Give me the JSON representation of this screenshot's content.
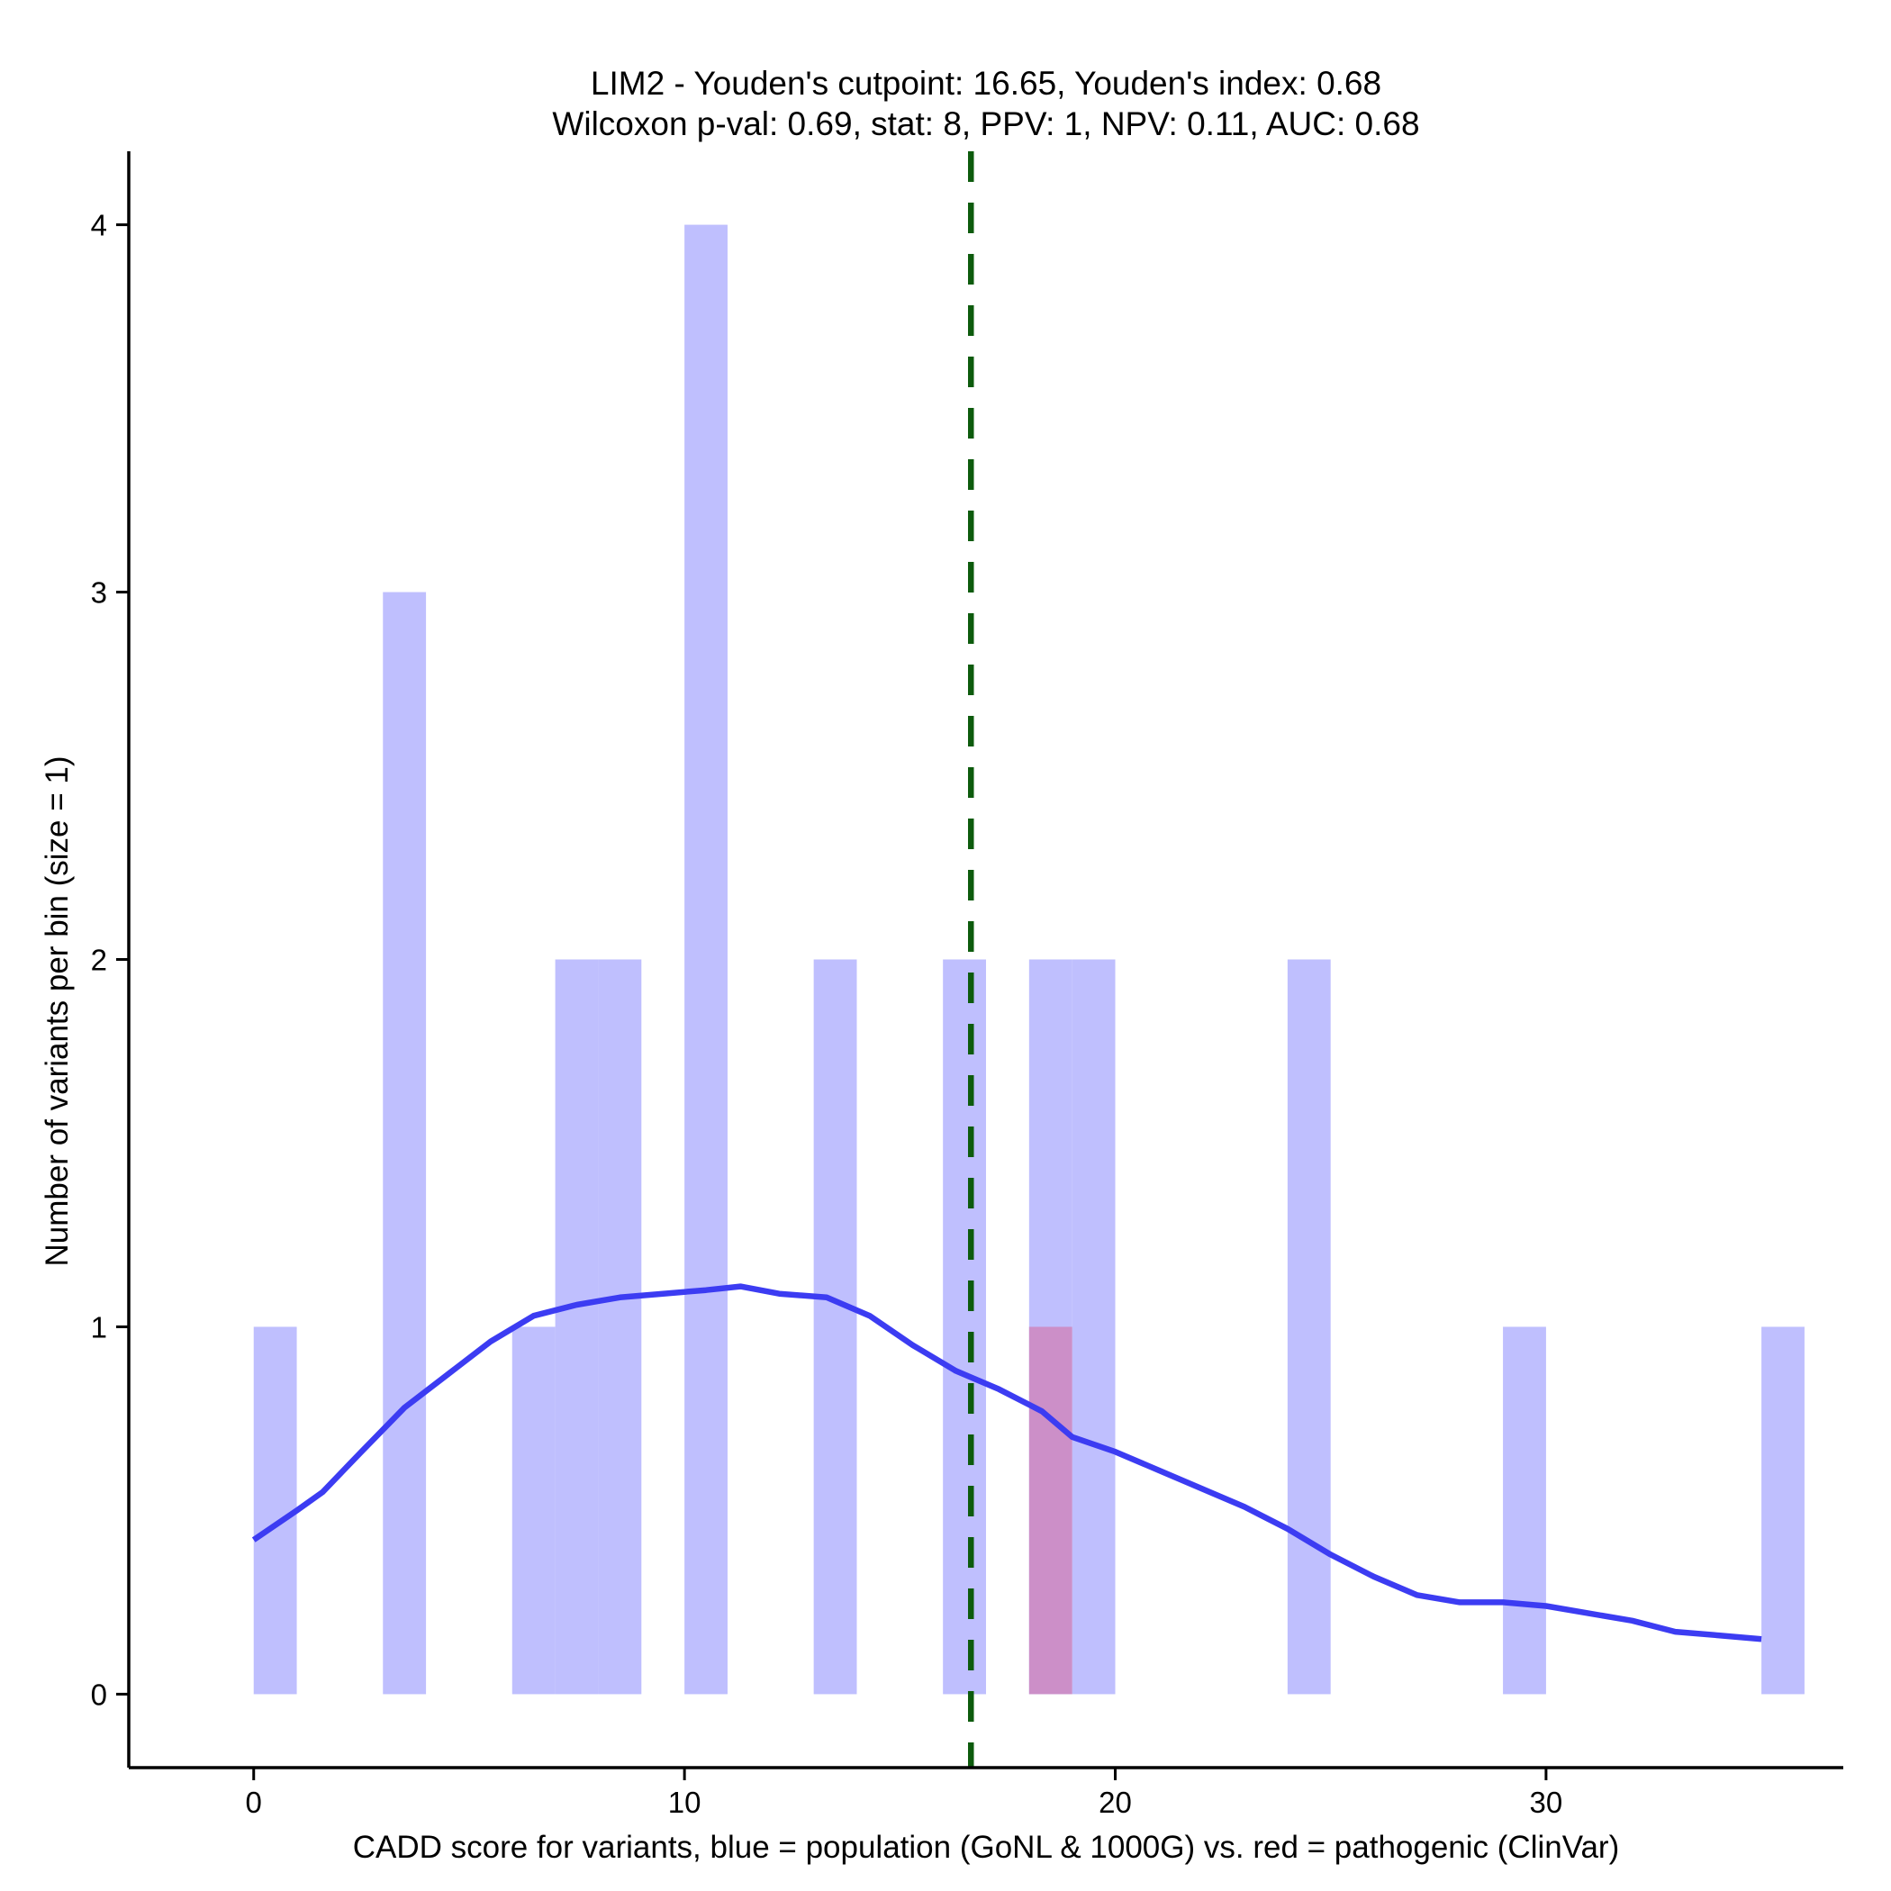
{
  "chart_data": {
    "type": "bar",
    "title_line1": "LIM2 - Youden's cutpoint: 16.65, Youden's index: 0.68",
    "title_line2": "Wilcoxon p-val: 0.69, stat: 8, PPV: 1, NPV: 0.11, AUC: 0.68",
    "xlabel": "CADD score for variants, blue = population (GoNL & 1000G) vs. red = pathogenic (ClinVar)",
    "ylabel": "Number of variants per bin (size = 1)",
    "xlim": [
      -2.9,
      36.9
    ],
    "ylim": [
      -0.2,
      4.2
    ],
    "xticks": [
      0,
      10,
      20,
      30
    ],
    "yticks": [
      0,
      1,
      2,
      3,
      4
    ],
    "bin_width": 1,
    "colors": {
      "population": "#bfbffe",
      "pathogenic": "#cc8fc8",
      "density": "#3c3cf2",
      "cutpoint": "#0d5b0d"
    },
    "series": [
      {
        "name": "population",
        "bins": [
          {
            "start": 0,
            "count": 1
          },
          {
            "start": 3,
            "count": 3
          },
          {
            "start": 6,
            "count": 1
          },
          {
            "start": 7,
            "count": 2
          },
          {
            "start": 8,
            "count": 2
          },
          {
            "start": 10,
            "count": 4
          },
          {
            "start": 13,
            "count": 2
          },
          {
            "start": 16,
            "count": 2
          },
          {
            "start": 18,
            "count": 2
          },
          {
            "start": 19,
            "count": 2
          },
          {
            "start": 24,
            "count": 2
          },
          {
            "start": 29,
            "count": 1
          },
          {
            "start": 35,
            "count": 1
          }
        ]
      },
      {
        "name": "pathogenic",
        "bins": [
          {
            "start": 18,
            "count": 1
          }
        ]
      }
    ],
    "density_curve": {
      "name": "population density",
      "x": [
        0,
        1,
        1.6,
        2.5,
        3.5,
        4.5,
        5.5,
        6.5,
        7.5,
        8.5,
        9.5,
        10.5,
        11.3,
        12.2,
        13.3,
        14.3,
        15.3,
        16.3,
        17.3,
        18.3,
        19,
        20,
        21,
        22,
        23,
        24,
        25,
        26,
        27,
        28,
        29,
        30,
        31,
        32,
        33,
        34,
        35
      ],
      "y": [
        0.42,
        0.5,
        0.55,
        0.66,
        0.78,
        0.87,
        0.96,
        1.03,
        1.06,
        1.08,
        1.09,
        1.1,
        1.11,
        1.09,
        1.08,
        1.03,
        0.95,
        0.88,
        0.83,
        0.77,
        0.7,
        0.66,
        0.61,
        0.56,
        0.51,
        0.45,
        0.38,
        0.32,
        0.27,
        0.25,
        0.25,
        0.24,
        0.22,
        0.2,
        0.17,
        0.16,
        0.15
      ]
    },
    "cutpoint": 16.65
  }
}
